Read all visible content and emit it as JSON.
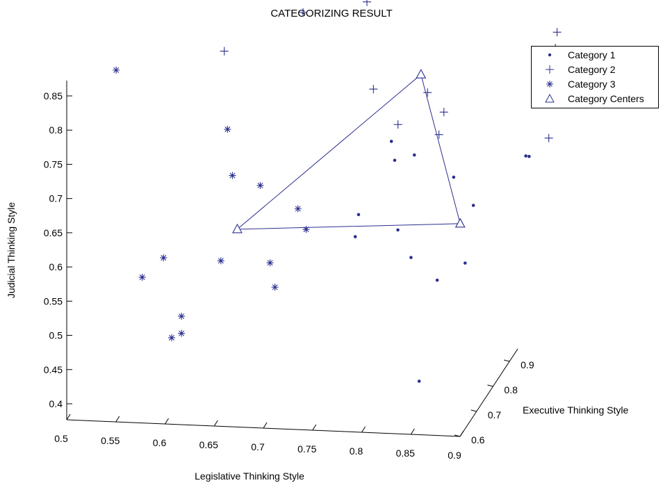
{
  "chart_data": {
    "type": "scatter3d",
    "title": "CATEGORIZING RESULT",
    "xlabel": "Legislative Thinking Style",
    "ylabel": "Executive Thinking Style",
    "zlabel": "Judicial Thinking Style",
    "x_ticks": [
      "0.5",
      "0.55",
      "0.6",
      "0.65",
      "0.7",
      "0.75",
      "0.8",
      "0.85",
      "0.9"
    ],
    "y_ticks": [
      "0.6",
      "0.7",
      "0.8",
      "0.9"
    ],
    "z_ticks": [
      "0.4",
      "0.45",
      "0.5",
      "0.55",
      "0.6",
      "0.65",
      "0.7",
      "0.75",
      "0.8",
      "0.85"
    ],
    "xlim": [
      0.5,
      0.9
    ],
    "ylim": [
      0.6,
      0.95
    ],
    "zlim": [
      0.4,
      0.85
    ],
    "grid": false,
    "legend_position": "top-right",
    "marker_color": "#2b2f8f",
    "series": [
      {
        "name": "Category 1",
        "marker": "dot",
        "points": [
          [
            0.8,
            0.8,
            0.701
          ],
          [
            0.8,
            0.78,
            0.736
          ],
          [
            0.82,
            0.8,
            0.71
          ],
          [
            0.78,
            0.7,
            0.657
          ],
          [
            0.86,
            0.8,
            0.68
          ],
          [
            0.82,
            0.7,
            0.637
          ],
          [
            0.78,
            0.68,
            0.632
          ],
          [
            0.83,
            0.72,
            0.59
          ],
          [
            0.86,
            0.7,
            0.566
          ],
          [
            0.88,
            0.8,
            0.64
          ],
          [
            0.93,
            0.82,
            0.708
          ],
          [
            0.88,
            0.75,
            0.574
          ],
          [
            0.93,
            0.84,
            0.7
          ],
          [
            0.85,
            0.65,
            0.436
          ]
        ]
      },
      {
        "name": "Category 2",
        "marker": "plus",
        "points": [
          [
            0.73,
            0.95,
            0.926
          ],
          [
            0.77,
            0.95,
            0.9
          ],
          [
            0.75,
            0.93,
            0.882
          ],
          [
            0.69,
            0.9,
            0.874
          ],
          [
            0.94,
            0.95,
            0.842
          ],
          [
            0.95,
            0.88,
            0.845
          ],
          [
            0.62,
            0.84,
            0.835
          ],
          [
            0.96,
            0.86,
            0.791
          ],
          [
            0.77,
            0.85,
            0.785
          ],
          [
            0.82,
            0.88,
            0.772
          ],
          [
            0.84,
            0.86,
            0.752
          ],
          [
            0.8,
            0.82,
            0.746
          ],
          [
            0.95,
            0.84,
            0.728
          ],
          [
            0.84,
            0.83,
            0.73
          ]
        ]
      },
      {
        "name": "Category 3",
        "marker": "asterisk",
        "points": [
          [
            0.5,
            0.9,
            0.778
          ],
          [
            0.63,
            0.8,
            0.736
          ],
          [
            0.64,
            0.77,
            0.68
          ],
          [
            0.67,
            0.76,
            0.671
          ],
          [
            0.71,
            0.75,
            0.643
          ],
          [
            0.72,
            0.74,
            0.617
          ],
          [
            0.64,
            0.7,
            0.581
          ],
          [
            0.69,
            0.7,
            0.581
          ],
          [
            0.7,
            0.67,
            0.557
          ],
          [
            0.58,
            0.71,
            0.578
          ],
          [
            0.56,
            0.7,
            0.552
          ],
          [
            0.61,
            0.64,
            0.52
          ],
          [
            0.61,
            0.64,
            0.495
          ],
          [
            0.6,
            0.64,
            0.488
          ]
        ]
      },
      {
        "name": "Category Centers",
        "marker": "triangle",
        "connected": true,
        "points": [
          [
            0.82,
            0.84,
            0.813
          ],
          [
            0.87,
            0.78,
            0.62
          ],
          [
            0.65,
            0.74,
            0.613
          ]
        ]
      }
    ]
  }
}
